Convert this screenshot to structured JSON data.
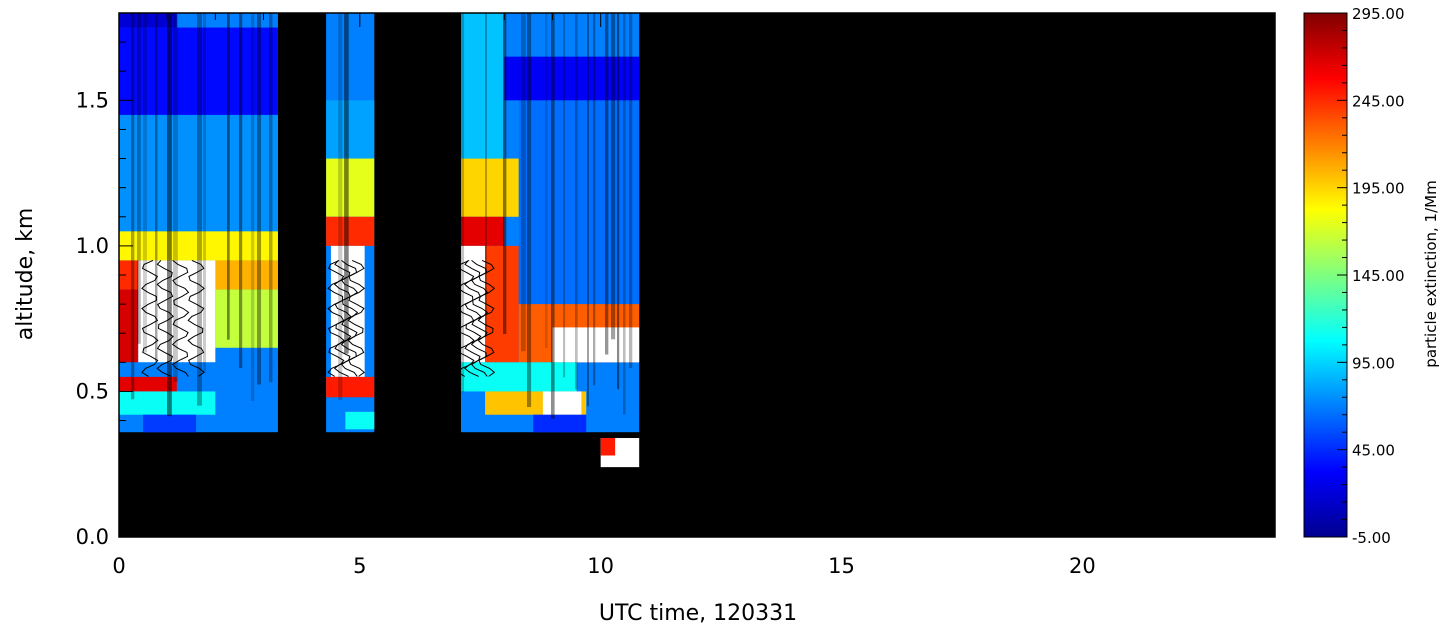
{
  "chart_data": {
    "type": "heatmap",
    "title": "",
    "xlabel": "UTC time, 120331",
    "ylabel": "altitude, km",
    "xlim": [
      0,
      24
    ],
    "ylim": [
      0,
      1.8
    ],
    "x_ticks": [
      "0",
      "5",
      "10",
      "15",
      "20"
    ],
    "y_ticks": [
      "0.0",
      "0.5",
      "1.0",
      "1.5"
    ],
    "colorbar": {
      "label": "particle extinction, 1/Mm",
      "range": [
        -5,
        295
      ],
      "ticks": [
        "295.00",
        "245.00",
        "195.00",
        "145.00",
        "95.00",
        "45.00",
        "-5.00"
      ],
      "colormap": "jet",
      "over_color": "#ffffff",
      "no_data_color": "#000000"
    },
    "time_blocks_hours": [
      [
        0,
        3.3
      ],
      [
        4.3,
        5.3
      ],
      [
        7.1,
        10.8
      ]
    ],
    "cells": [
      {
        "x": [
          0.0,
          3.3
        ],
        "y": [
          1.05,
          1.45
        ],
        "v": 75
      },
      {
        "x": [
          0.0,
          3.3
        ],
        "y": [
          1.45,
          1.75
        ],
        "v": 35
      },
      {
        "x": [
          0.0,
          1.2
        ],
        "y": [
          1.75,
          1.8
        ],
        "v": 20
      },
      {
        "x": [
          0.0,
          3.3
        ],
        "y": [
          0.95,
          1.05
        ],
        "v": 185
      },
      {
        "x": [
          0.0,
          0.9
        ],
        "y": [
          0.85,
          0.95
        ],
        "v": 245
      },
      {
        "x": [
          0.9,
          3.3
        ],
        "y": [
          0.85,
          0.95
        ],
        "v": 205
      },
      {
        "x": [
          0.0,
          0.4
        ],
        "y": [
          0.6,
          0.85
        ],
        "v": 270
      },
      {
        "x": [
          0.4,
          2.0
        ],
        "y": [
          0.6,
          0.95
        ],
        "v": 330
      },
      {
        "x": [
          2.0,
          3.3
        ],
        "y": [
          0.65,
          0.85
        ],
        "v": 165
      },
      {
        "x": [
          0.0,
          3.3
        ],
        "y": [
          0.55,
          0.6
        ],
        "v": 70
      },
      {
        "x": [
          0.0,
          1.2
        ],
        "y": [
          0.5,
          0.55
        ],
        "v": 265
      },
      {
        "x": [
          0.0,
          2.0
        ],
        "y": [
          0.42,
          0.5
        ],
        "v": 110
      },
      {
        "x": [
          0.5,
          1.6
        ],
        "y": [
          0.36,
          0.42
        ],
        "v": 50
      },
      {
        "x": [
          4.3,
          5.3
        ],
        "y": [
          1.3,
          1.5
        ],
        "v": 80
      },
      {
        "x": [
          4.3,
          5.3
        ],
        "y": [
          1.1,
          1.3
        ],
        "v": 175
      },
      {
        "x": [
          4.3,
          5.3
        ],
        "y": [
          1.0,
          1.1
        ],
        "v": 245
      },
      {
        "x": [
          4.4,
          5.1
        ],
        "y": [
          0.55,
          1.0
        ],
        "v": 330
      },
      {
        "x": [
          4.3,
          5.3
        ],
        "y": [
          0.48,
          0.55
        ],
        "v": 250
      },
      {
        "x": [
          4.7,
          5.3
        ],
        "y": [
          0.37,
          0.43
        ],
        "v": 110
      },
      {
        "x": [
          7.1,
          8.3
        ],
        "y": [
          1.1,
          1.3
        ],
        "v": 195
      },
      {
        "x": [
          7.1,
          8.0
        ],
        "y": [
          1.0,
          1.1
        ],
        "v": 265
      },
      {
        "x": [
          7.1,
          7.6
        ],
        "y": [
          0.6,
          1.0
        ],
        "v": 330
      },
      {
        "x": [
          7.6,
          8.3
        ],
        "y": [
          0.6,
          1.0
        ],
        "v": 240
      },
      {
        "x": [
          8.3,
          10.8
        ],
        "y": [
          0.8,
          1.5
        ],
        "v": 65
      },
      {
        "x": [
          8.3,
          10.8
        ],
        "y": [
          0.6,
          0.8
        ],
        "v": 230
      },
      {
        "x": [
          9.0,
          10.8
        ],
        "y": [
          0.6,
          0.72
        ],
        "v": 330
      },
      {
        "x": [
          7.1,
          9.5
        ],
        "y": [
          0.5,
          0.6
        ],
        "v": 110
      },
      {
        "x": [
          7.6,
          9.7
        ],
        "y": [
          0.42,
          0.5
        ],
        "v": 200
      },
      {
        "x": [
          8.8,
          9.6
        ],
        "y": [
          0.42,
          0.5
        ],
        "v": 330
      },
      {
        "x": [
          8.6,
          9.7
        ],
        "y": [
          0.36,
          0.42
        ],
        "v": 45
      },
      {
        "x": [
          10.0,
          10.8
        ],
        "y": [
          0.24,
          0.34
        ],
        "v": 330
      },
      {
        "x": [
          10.0,
          10.3
        ],
        "y": [
          0.28,
          0.34
        ],
        "v": 250
      },
      {
        "x": [
          7.1,
          8.0
        ],
        "y": [
          1.3,
          1.8
        ],
        "v": 90
      },
      {
        "x": [
          8.0,
          10.8
        ],
        "y": [
          1.5,
          1.65
        ],
        "v": 30
      }
    ]
  }
}
